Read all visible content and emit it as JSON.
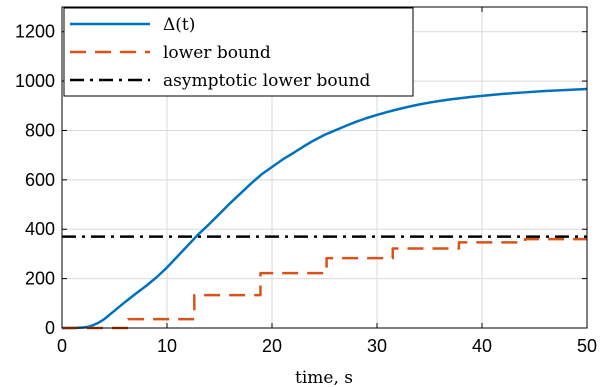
{
  "chart_data": {
    "type": "line",
    "xlabel": "time, s",
    "ylabel": "",
    "xlim": [
      0,
      50
    ],
    "ylim": [
      0,
      1300
    ],
    "xticks": [
      0,
      10,
      20,
      30,
      40,
      50
    ],
    "yticks": [
      0,
      200,
      400,
      600,
      800,
      1000,
      1200
    ],
    "xtick_labels": [
      "0",
      "10",
      "20",
      "30",
      "40",
      "50"
    ],
    "ytick_labels": [
      "0",
      "200",
      "400",
      "600",
      "800",
      "1000",
      "1200"
    ],
    "grid": true,
    "legend_position": "top-left",
    "series": [
      {
        "name": "Δ(t)",
        "style": "solid",
        "color": "#0072bd",
        "x": [
          0,
          1,
          2,
          2.5,
          3,
          3.5,
          4,
          5,
          6,
          7,
          8,
          9,
          10,
          11,
          12,
          13,
          14,
          15,
          16,
          17,
          18,
          19,
          20,
          21,
          22,
          23,
          24,
          25,
          26,
          27,
          28,
          29,
          30,
          31,
          32,
          33,
          34,
          35,
          36,
          37,
          38,
          39,
          40,
          41,
          42,
          43,
          44,
          45,
          46,
          47,
          48,
          49,
          50
        ],
        "y": [
          0,
          0,
          2,
          5,
          12,
          22,
          35,
          70,
          105,
          138,
          170,
          205,
          245,
          290,
          335,
          380,
          420,
          462,
          505,
          545,
          585,
          622,
          652,
          682,
          708,
          735,
          760,
          782,
          800,
          818,
          835,
          850,
          863,
          875,
          886,
          896,
          905,
          913,
          920,
          926,
          931,
          936,
          940,
          944,
          948,
          951,
          954,
          957,
          960,
          962,
          964,
          966,
          968
        ]
      },
      {
        "name": "lower bound",
        "style": "dashed",
        "color": "#d95319",
        "x": [
          0,
          6.3,
          6.3,
          12.6,
          12.6,
          18.9,
          18.9,
          25.2,
          25.2,
          31.5,
          31.5,
          37.8,
          37.8,
          44.1,
          44.1,
          50
        ],
        "y": [
          0,
          0,
          36,
          36,
          133,
          133,
          222,
          222,
          283,
          283,
          322,
          322,
          347,
          347,
          360,
          360
        ]
      },
      {
        "name": "asymptotic lower bound",
        "style": "dashdot",
        "color": "#000000",
        "x": [
          0,
          50
        ],
        "y": [
          370,
          370
        ]
      }
    ]
  },
  "legend": {
    "entries": [
      {
        "label": "Δ(t)",
        "color": "#0072bd",
        "style": "solid"
      },
      {
        "label": "lower bound",
        "color": "#d95319",
        "style": "dashed"
      },
      {
        "label": "asymptotic lower bound",
        "color": "#000000",
        "style": "dashdot"
      }
    ]
  }
}
